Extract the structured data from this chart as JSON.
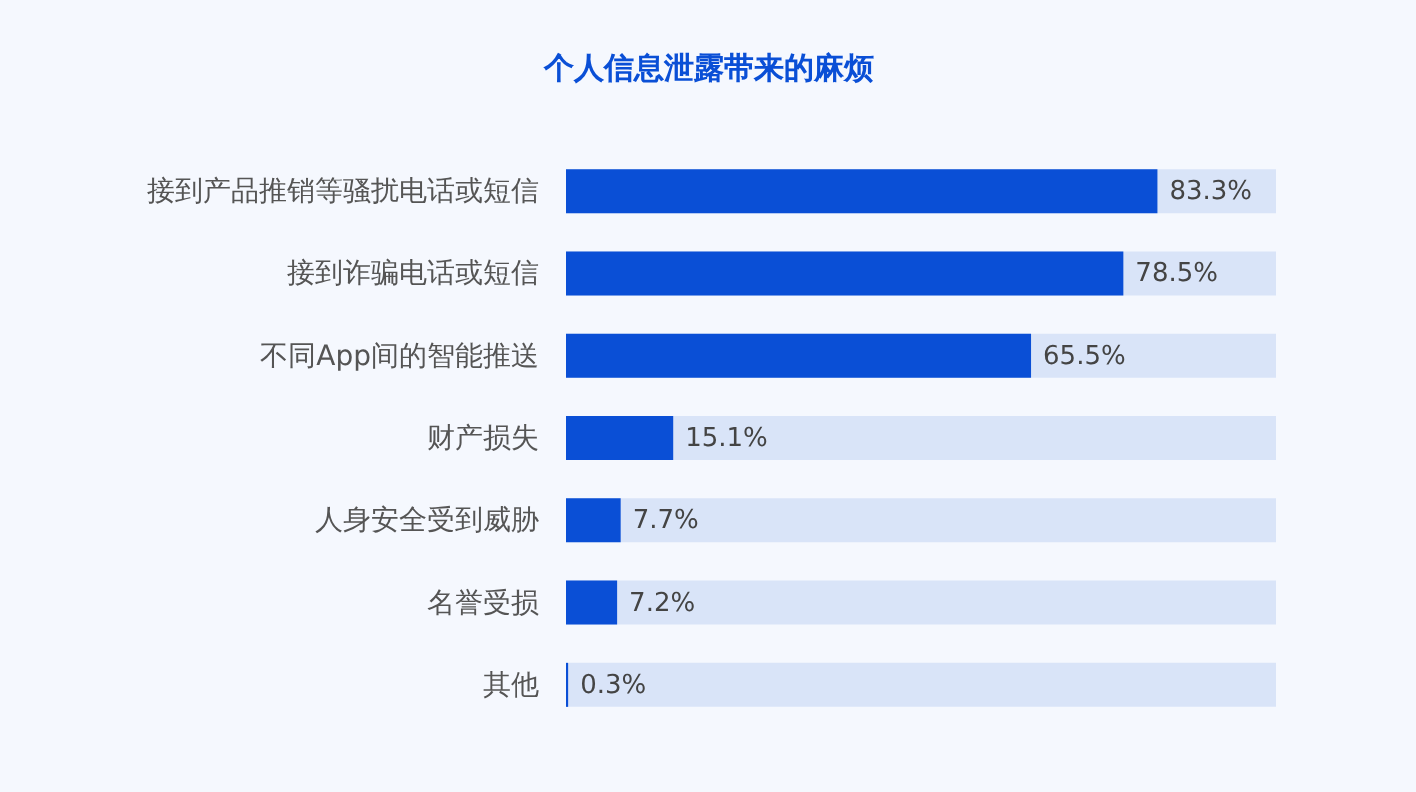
{
  "chart_data": {
    "type": "bar",
    "orientation": "horizontal",
    "title": "个人信息泄露带来的麻烦",
    "categories": [
      "接到产品推销等骚扰电话或短信",
      "接到诈骗电话或短信",
      "不同App间的智能推送",
      "财产损失",
      "人身安全受到威胁",
      "名誉受损",
      "其他"
    ],
    "values": [
      83.3,
      78.5,
      65.5,
      15.1,
      7.7,
      7.2,
      0.3
    ],
    "value_labels": [
      "83.3%",
      "78.5%",
      "65.5%",
      "15.1%",
      "7.7%",
      "7.2%",
      "0.3%"
    ],
    "color": "#0a4fd6",
    "xlim": [
      0,
      100
    ],
    "tick_labels": "y",
    "grid": false
  }
}
